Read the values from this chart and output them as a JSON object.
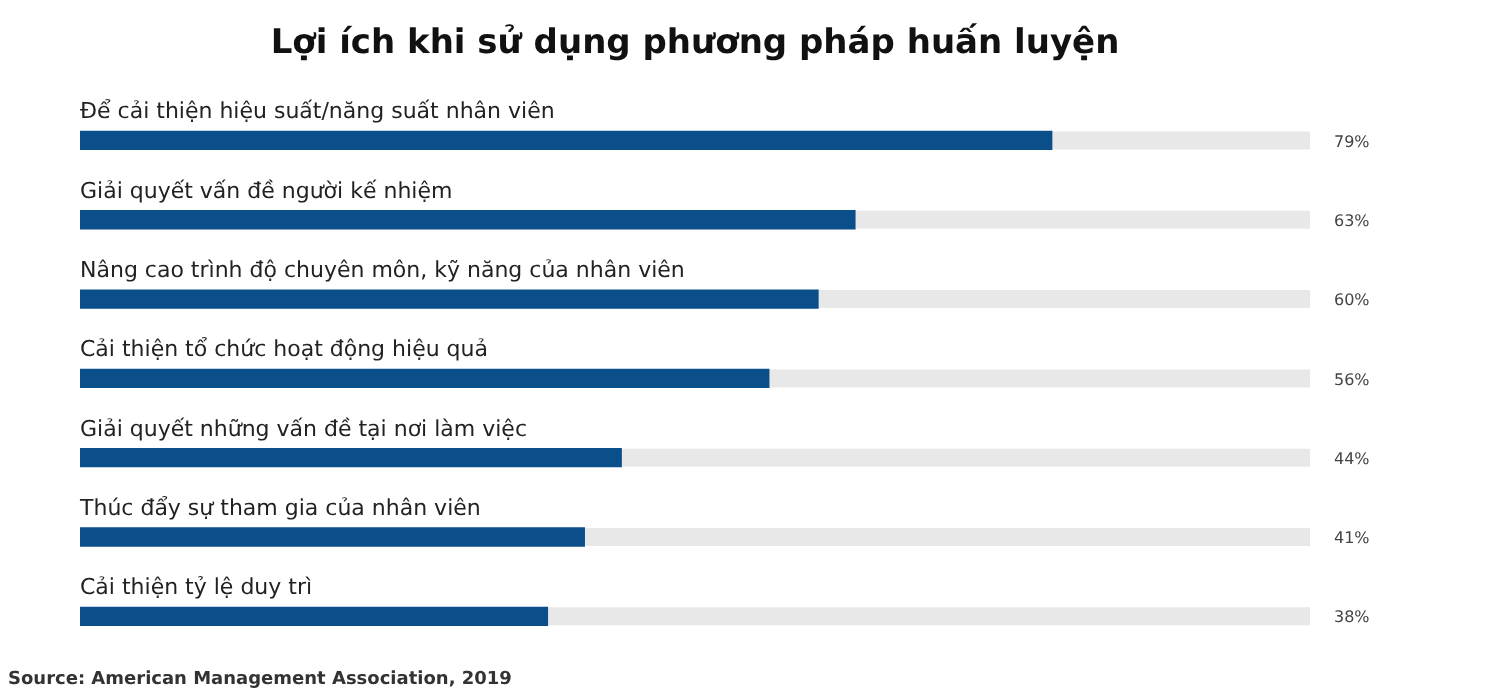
{
  "chart_data": {
    "type": "bar",
    "orientation": "horizontal",
    "title": "Lợi ích khi sử dụng phương pháp huấn luyện",
    "categories": [
      "Để cải thiện hiệu suất/năng suất nhân viên",
      "Giải quyết vấn đề người kế nhiệm",
      "Nâng cao trình độ chuyên môn, kỹ năng của nhân viên",
      "Cải thiện tổ chức hoạt động hiệu quả",
      "Giải quyết những vấn đề tại nơi làm việc",
      "Thúc đẩy sự tham gia của nhân viên",
      "Cải thiện tỷ lệ duy trì"
    ],
    "values": [
      79,
      63,
      60,
      56,
      44,
      41,
      38
    ],
    "value_labels": [
      "79%",
      "63%",
      "60%",
      "56%",
      "44%",
      "41%",
      "38%"
    ],
    "color": "#0b4f8a",
    "xlim": [
      0,
      100
    ],
    "tick_labels": false,
    "annotations": [
      "Source: American Management Association, 2019"
    ]
  }
}
